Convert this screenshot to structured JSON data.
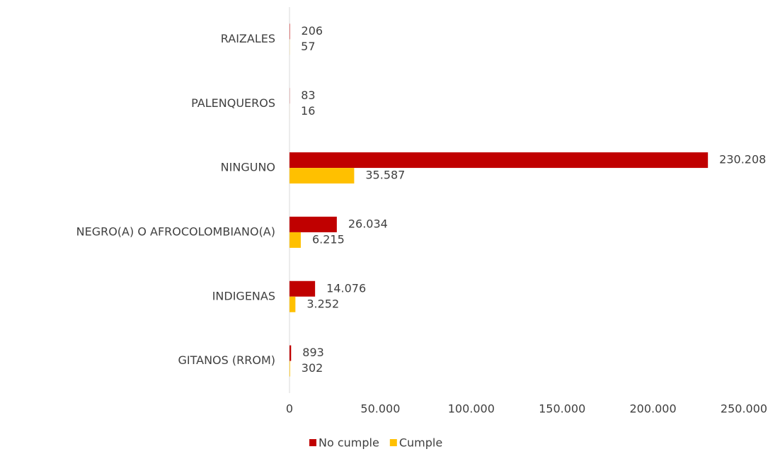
{
  "chart_data": {
    "type": "bar",
    "orientation": "horizontal",
    "categories": [
      "RAIZALES",
      "PALENQUEROS",
      "NINGUNO",
      "NEGRO(A) O AFROCOLOMBIANO(A)",
      "INDIGENAS",
      "GITANOS (RROM)"
    ],
    "series": [
      {
        "name": "No cumple",
        "color": "#c00000",
        "values": [
          206,
          83,
          230208,
          26034,
          14076,
          893
        ],
        "value_labels": [
          "206",
          "83",
          "230.208",
          "26.034",
          "14.076",
          "893"
        ]
      },
      {
        "name": "Cumple",
        "color": "#ffc000",
        "values": [
          57,
          16,
          35587,
          6215,
          3252,
          302
        ],
        "value_labels": [
          "57",
          "16",
          "35.587",
          "6.215",
          "3.252",
          "302"
        ]
      }
    ],
    "xlim": [
      0,
      250000
    ],
    "xticks": [
      0,
      {
        "value": 50000,
        "label": "50.000"
      },
      {
        "value": 100000,
        "label": "100.000"
      },
      {
        "value": 150000,
        "label": "150.000"
      },
      {
        "value": 200000,
        "label": "200.000"
      },
      {
        "value": 250000,
        "label": "250.000"
      }
    ],
    "legend": "bottom"
  }
}
